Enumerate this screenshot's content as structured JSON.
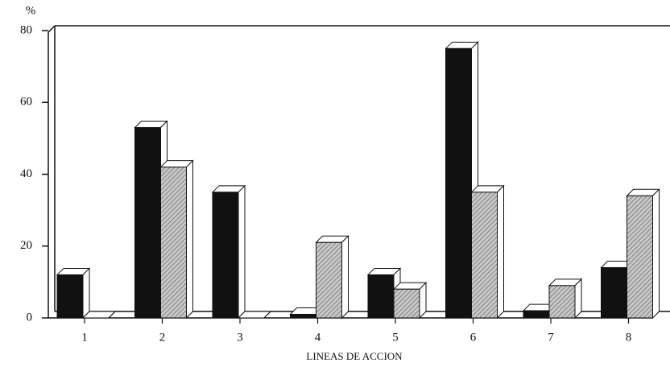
{
  "chart_data": {
    "type": "bar3d",
    "y_label": "%",
    "x_label": "LINEAS DE ACCION",
    "categories": [
      "1",
      "2",
      "3",
      "4",
      "5",
      "6",
      "7",
      "8"
    ],
    "series": [
      {
        "color": "#111111",
        "values": [
          12,
          53,
          35,
          1,
          12,
          75,
          2,
          14
        ]
      },
      {
        "color": "#c8c8c8",
        "values": [
          0,
          42,
          0,
          21,
          8,
          35,
          9,
          34
        ],
        "hatch": true
      }
    ],
    "ylim": [
      0,
      80
    ],
    "yticks": [
      0,
      20,
      40,
      60,
      80
    ],
    "grid": false
  }
}
